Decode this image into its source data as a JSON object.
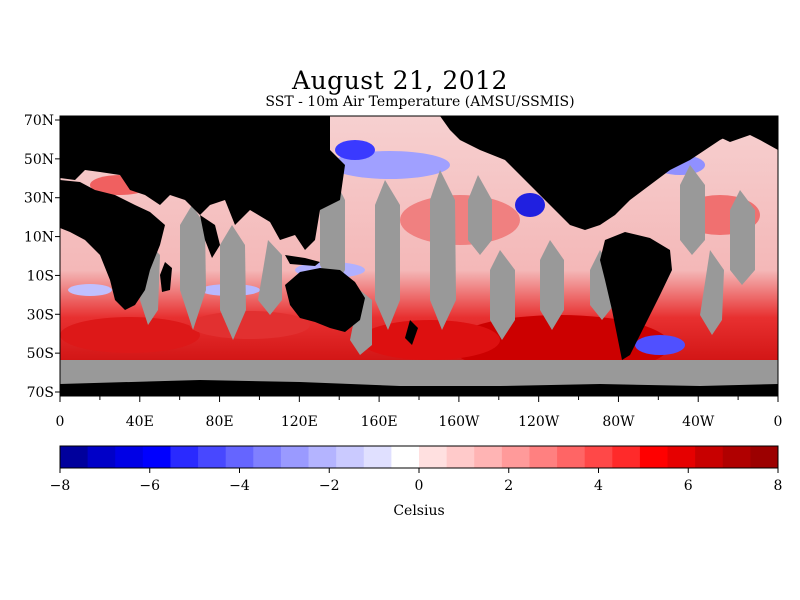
{
  "title": "August 21, 2012",
  "subtitle": "SST - 10m Air Temperature (AMSU/SSMIS)",
  "map": {
    "lat_labels": [
      "70N",
      "50N",
      "30N",
      "10N",
      "10S",
      "30S",
      "50S",
      "70S"
    ],
    "lon_labels": [
      "0",
      "40E",
      "80E",
      "120E",
      "160E",
      "160W",
      "120W",
      "80W",
      "40W",
      "0"
    ],
    "colors": {
      "land": "#000000",
      "missing": "#999999",
      "ocean_neutral": "#f4e0e0"
    }
  },
  "colorbar": {
    "label": "Celsius",
    "tick_labels": [
      "-8",
      "-6",
      "-4",
      "-2",
      "0",
      "2",
      "4",
      "6",
      "8"
    ],
    "min": -8,
    "max": 8,
    "colors": [
      "#00009c",
      "#0000c8",
      "#0000e6",
      "#0000ff",
      "#2a2aff",
      "#4848ff",
      "#6565ff",
      "#8080ff",
      "#9a9aff",
      "#b4b4ff",
      "#cacaff",
      "#e0e0ff",
      "#ffffff",
      "#ffe0e0",
      "#ffcaca",
      "#ffb4b4",
      "#ff9a9a",
      "#ff8080",
      "#ff6565",
      "#ff4848",
      "#ff2a2a",
      "#ff0000",
      "#e60000",
      "#c80000",
      "#b00000",
      "#9c0000"
    ]
  }
}
